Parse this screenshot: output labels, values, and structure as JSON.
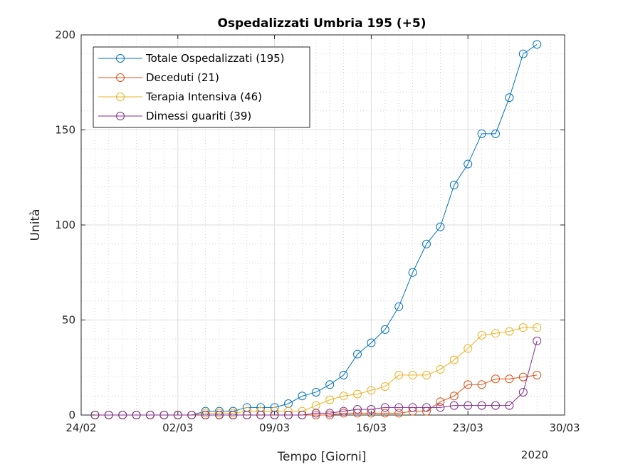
{
  "chart_data": {
    "type": "line",
    "title": "Ospedalizzati Umbria 195 (+5)",
    "xlabel": "Tempo [Giorni]",
    "ylabel": "Unità",
    "x_secondary_label": "2020",
    "x_tick_labels": [
      "24/02",
      "02/03",
      "09/03",
      "16/03",
      "23/03",
      "30/03"
    ],
    "y_tick_labels": [
      "0",
      "50",
      "100",
      "150",
      "200"
    ],
    "y_ticks": [
      0,
      50,
      100,
      150,
      200
    ],
    "ylim": [
      0,
      200
    ],
    "xlim": [
      "2020-02-24",
      "2020-03-30"
    ],
    "grid": true,
    "minor_grid": true,
    "legend_position": "top-left",
    "marker": "circle",
    "x": [
      "2020-02-25",
      "2020-02-26",
      "2020-02-27",
      "2020-02-28",
      "2020-02-29",
      "2020-03-01",
      "2020-03-02",
      "2020-03-03",
      "2020-03-04",
      "2020-03-05",
      "2020-03-06",
      "2020-03-07",
      "2020-03-08",
      "2020-03-09",
      "2020-03-10",
      "2020-03-11",
      "2020-03-12",
      "2020-03-13",
      "2020-03-14",
      "2020-03-15",
      "2020-03-16",
      "2020-03-17",
      "2020-03-18",
      "2020-03-19",
      "2020-03-20",
      "2020-03-21",
      "2020-03-22",
      "2020-03-23",
      "2020-03-24",
      "2020-03-25",
      "2020-03-26",
      "2020-03-27",
      "2020-03-28"
    ],
    "series": [
      {
        "name": "Totale Ospedalizzati (195)",
        "color": "#0072BD",
        "values": [
          0,
          0,
          0,
          0,
          0,
          0,
          0,
          0,
          2,
          2,
          2,
          4,
          4,
          4,
          6,
          10,
          12,
          16,
          21,
          32,
          38,
          45,
          57,
          75,
          90,
          99,
          121,
          132,
          148,
          148,
          167,
          190,
          195
        ]
      },
      {
        "name": "Deceduti (21)",
        "color": "#D95319",
        "values": [
          0,
          0,
          0,
          0,
          0,
          0,
          0,
          0,
          0,
          0,
          0,
          0,
          0,
          0,
          0,
          0,
          0,
          0,
          1,
          1,
          1,
          1,
          1,
          2,
          2,
          7,
          10,
          16,
          16,
          19,
          19,
          20,
          21
        ]
      },
      {
        "name": "Terapia Intensiva (46)",
        "color": "#EDB120",
        "values": [
          0,
          0,
          0,
          0,
          0,
          0,
          0,
          0,
          1,
          1,
          1,
          2,
          2,
          2,
          2,
          2,
          5,
          8,
          10,
          11,
          13,
          15,
          21,
          21,
          21,
          24,
          29,
          35,
          42,
          43,
          44,
          46,
          46
        ]
      },
      {
        "name": "Dimessi guariti (39)",
        "color": "#7E2F8E",
        "values": [
          0,
          0,
          0,
          0,
          0,
          0,
          0,
          0,
          0,
          0,
          0,
          0,
          0,
          0,
          0,
          0,
          1,
          1,
          2,
          3,
          3,
          4,
          4,
          4,
          4,
          4,
          5,
          5,
          5,
          5,
          5,
          12,
          39
        ]
      }
    ]
  }
}
